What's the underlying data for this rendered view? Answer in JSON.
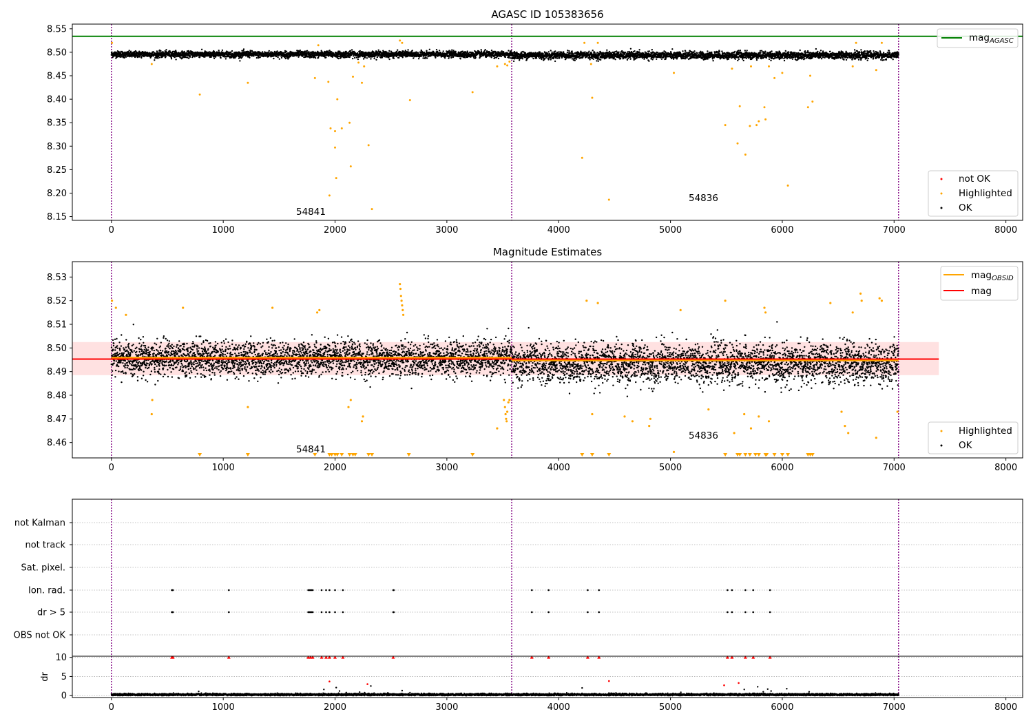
{
  "colors": {
    "ok": "#000000",
    "highlighted": "#ffa500",
    "not_ok": "#ff0000",
    "agasc_line": "#008000",
    "obsid_line": "#ffa500",
    "mag_line": "#ff0000",
    "mag_band": "#ffc8c8",
    "obs_boundary": "#800080",
    "grid": "#b0b0b0"
  },
  "chart_data": [
    {
      "panel": "top",
      "type": "scatter",
      "title": "AGASC ID 105383656",
      "xlabel": "",
      "ylabel": "",
      "xlim": [
        -350,
        8150
      ],
      "ylim": [
        8.142,
        8.56
      ],
      "x_ticks": [
        0,
        1000,
        2000,
        3000,
        4000,
        5000,
        6000,
        7000,
        8000
      ],
      "y_ticks": [
        8.15,
        8.2,
        8.25,
        8.3,
        8.35,
        8.4,
        8.45,
        8.5,
        8.55
      ],
      "y_tick_labels": [
        "8.15",
        "8.20",
        "8.25",
        "8.30",
        "8.35",
        "8.40",
        "8.45",
        "8.50",
        "8.55"
      ],
      "grid": false,
      "lines": [
        {
          "name": "mag_AGASC",
          "legend_main": "mag",
          "legend_sub": "AGASC",
          "y": 8.534,
          "x_range": [
            -350,
            8150
          ]
        }
      ],
      "obs_boundaries": [
        0,
        3580,
        7040
      ],
      "obs_labels": [
        {
          "text": "54841",
          "x": 1800,
          "y": 8.145
        },
        {
          "text": "54836",
          "x": 5300,
          "y": 8.175
        }
      ],
      "legend_lines": "upper right",
      "legend_markers": {
        "placement": "lower right",
        "entries": [
          "not OK",
          "Highlighted",
          "OK"
        ]
      },
      "series": [
        {
          "name": "OK",
          "color": "#000000",
          "description": "~7000 dense samples",
          "segments": [
            {
              "x_start": 0,
              "x_end": 3580,
              "y_mean": 8.4955,
              "y_spread": 0.006
            },
            {
              "x_start": 3580,
              "x_end": 7040,
              "y_mean": 8.4935,
              "y_spread": 0.007
            }
          ]
        },
        {
          "name": "Highlighted",
          "color": "#ffa500",
          "points": [
            [
              5,
              8.52
            ],
            [
              360,
              8.475
            ],
            [
              790,
              8.41
            ],
            [
              1220,
              8.435
            ],
            [
              1820,
              8.445
            ],
            [
              1850,
              8.515
            ],
            [
              1940,
              8.437
            ],
            [
              1950,
              8.195
            ],
            [
              1960,
              8.338
            ],
            [
              2000,
              8.297
            ],
            [
              2000,
              8.332
            ],
            [
              2010,
              8.232
            ],
            [
              2020,
              8.4
            ],
            [
              2060,
              8.338
            ],
            [
              2130,
              8.35
            ],
            [
              2140,
              8.257
            ],
            [
              2160,
              8.448
            ],
            [
              2210,
              8.478
            ],
            [
              2240,
              8.435
            ],
            [
              2260,
              8.47
            ],
            [
              2300,
              8.302
            ],
            [
              2330,
              8.166
            ],
            [
              2580,
              8.525
            ],
            [
              2600,
              8.52
            ],
            [
              2670,
              8.398
            ],
            [
              3230,
              8.415
            ],
            [
              3450,
              8.47
            ],
            [
              3520,
              8.475
            ],
            [
              3540,
              8.472
            ],
            [
              3560,
              8.48
            ],
            [
              4210,
              8.275
            ],
            [
              4230,
              8.52
            ],
            [
              4290,
              8.475
            ],
            [
              4300,
              8.403
            ],
            [
              4350,
              8.52
            ],
            [
              4450,
              8.186
            ],
            [
              5030,
              8.456
            ],
            [
              5490,
              8.345
            ],
            [
              5550,
              8.465
            ],
            [
              5600,
              8.306
            ],
            [
              5620,
              8.385
            ],
            [
              5670,
              8.282
            ],
            [
              5710,
              8.343
            ],
            [
              5720,
              8.47
            ],
            [
              5770,
              8.345
            ],
            [
              5790,
              8.353
            ],
            [
              5840,
              8.383
            ],
            [
              5850,
              8.357
            ],
            [
              5880,
              8.47
            ],
            [
              5930,
              8.445
            ],
            [
              6000,
              8.456
            ],
            [
              6050,
              8.216
            ],
            [
              6230,
              8.383
            ],
            [
              6250,
              8.45
            ],
            [
              6270,
              8.395
            ],
            [
              6630,
              8.47
            ],
            [
              6660,
              8.52
            ],
            [
              6840,
              8.462
            ],
            [
              6890,
              8.52
            ]
          ]
        },
        {
          "name": "not OK",
          "color": "#ff0000",
          "points": []
        }
      ]
    },
    {
      "panel": "middle",
      "type": "scatter",
      "title": "Magnitude Estimates",
      "xlabel": "",
      "ylabel": "",
      "xlim": [
        -350,
        8150
      ],
      "ylim": [
        8.4535,
        8.5365
      ],
      "x_ticks": [
        0,
        1000,
        2000,
        3000,
        4000,
        5000,
        6000,
        7000,
        8000
      ],
      "y_ticks": [
        8.46,
        8.47,
        8.48,
        8.49,
        8.5,
        8.51,
        8.52,
        8.53
      ],
      "y_tick_labels": [
        "8.46",
        "8.47",
        "8.48",
        "8.49",
        "8.50",
        "8.51",
        "8.52",
        "8.53"
      ],
      "grid": false,
      "band": {
        "x_range": [
          -350,
          7400
        ],
        "y_range": [
          8.4885,
          8.5025
        ]
      },
      "lines": [
        {
          "name": "mag_OBSID",
          "legend_main": "mag",
          "legend_sub": "OBSID",
          "segments": [
            {
              "x_range": [
                0,
                3580
              ],
              "y": 8.4959
            },
            {
              "x_range": [
                3580,
                7040
              ],
              "y": 8.4947
            }
          ]
        },
        {
          "name": "mag",
          "legend_main": "mag",
          "legend_sub": "",
          "y": 8.4953,
          "x_range": [
            -350,
            7400
          ]
        }
      ],
      "obs_boundaries": [
        0,
        3580,
        7040
      ],
      "obs_labels": [
        {
          "text": "54841",
          "x": 1800,
          "y": 8.4555
        },
        {
          "text": "54836",
          "x": 5300,
          "y": 8.4615
        }
      ],
      "legend_lines": "upper right",
      "legend_markers": {
        "placement": "lower right",
        "entries": [
          "Highlighted",
          "OK"
        ]
      },
      "series": [
        {
          "name": "OK",
          "color": "#000000",
          "description": "dense samples",
          "segments": [
            {
              "x_start": 0,
              "x_end": 3580,
              "y_mean": 8.4955,
              "y_spread": 0.0065
            },
            {
              "x_start": 3580,
              "x_end": 7040,
              "y_mean": 8.4935,
              "y_spread": 0.0075
            }
          ]
        },
        {
          "name": "Highlighted",
          "color": "#ffa500",
          "points": [
            [
              5,
              8.52
            ],
            [
              40,
              8.517
            ],
            [
              130,
              8.514
            ],
            [
              360,
              8.472
            ],
            [
              365,
              8.478
            ],
            [
              640,
              8.517
            ],
            [
              1220,
              8.475
            ],
            [
              1440,
              8.517
            ],
            [
              1840,
              8.515
            ],
            [
              1860,
              8.516
            ],
            [
              2120,
              8.475
            ],
            [
              2140,
              8.478
            ],
            [
              2240,
              8.469
            ],
            [
              2250,
              8.471
            ],
            [
              2580,
              8.527
            ],
            [
              2585,
              8.525
            ],
            [
              2590,
              8.522
            ],
            [
              2595,
              8.52
            ],
            [
              2600,
              8.518
            ],
            [
              2605,
              8.516
            ],
            [
              2610,
              8.514
            ],
            [
              3450,
              8.466
            ],
            [
              3510,
              8.478
            ],
            [
              3520,
              8.475
            ],
            [
              3525,
              8.472
            ],
            [
              3530,
              8.47
            ],
            [
              3535,
              8.469
            ],
            [
              3540,
              8.473
            ],
            [
              3550,
              8.477
            ],
            [
              3560,
              8.478
            ],
            [
              4250,
              8.52
            ],
            [
              4300,
              8.472
            ],
            [
              4350,
              8.519
            ],
            [
              4590,
              8.471
            ],
            [
              4660,
              8.469
            ],
            [
              4810,
              8.467
            ],
            [
              4820,
              8.47
            ],
            [
              5030,
              8.456
            ],
            [
              5090,
              8.516
            ],
            [
              5340,
              8.474
            ],
            [
              5490,
              8.52
            ],
            [
              5570,
              8.464
            ],
            [
              5660,
              8.472
            ],
            [
              5720,
              8.466
            ],
            [
              5790,
              8.471
            ],
            [
              5840,
              8.517
            ],
            [
              5850,
              8.515
            ],
            [
              5880,
              8.469
            ],
            [
              6430,
              8.519
            ],
            [
              6530,
              8.473
            ],
            [
              6560,
              8.467
            ],
            [
              6590,
              8.464
            ],
            [
              6630,
              8.515
            ],
            [
              6700,
              8.523
            ],
            [
              6710,
              8.52
            ],
            [
              6840,
              8.462
            ],
            [
              6870,
              8.521
            ],
            [
              6890,
              8.52
            ],
            [
              7030,
              8.473
            ]
          ]
        },
        {
          "name": "Highlighted (below range)",
          "color": "#ffa500",
          "marker": "triangle-down",
          "x": [
            790,
            1220,
            1820,
            1950,
            1970,
            2000,
            2020,
            2060,
            2130,
            2160,
            2180,
            2300,
            2330,
            2660,
            3230,
            4210,
            4300,
            4450,
            5490,
            5600,
            5620,
            5670,
            5710,
            5760,
            5790,
            5850,
            5860,
            5930,
            6000,
            6050,
            6230,
            6250,
            6270
          ]
        }
      ]
    },
    {
      "panel": "bottom",
      "type": "scatter",
      "title": "",
      "xlabel": "",
      "ylabel": "",
      "xlim": [
        -350,
        8150
      ],
      "x_ticks": [
        0,
        1000,
        2000,
        3000,
        4000,
        5000,
        6000,
        7000,
        8000
      ],
      "grid": "horizontal dotted",
      "obs_boundaries": [
        0,
        3580,
        7040
      ],
      "flag_rows": [
        {
          "label": "not Kalman",
          "x": []
        },
        {
          "label": "not track",
          "x": []
        },
        {
          "label": "Sat. pixel.",
          "x": []
        },
        {
          "label": "Ion. rad.",
          "x": [
            540,
            545,
            550,
            1050,
            1760,
            1770,
            1780,
            1790,
            1800,
            1880,
            1920,
            1950,
            2000,
            2070,
            2520,
            2525,
            3760,
            3910,
            4260,
            4360,
            5510,
            5550,
            5670,
            5740,
            5890
          ]
        },
        {
          "label": "dr > 5",
          "x": [
            540,
            545,
            550,
            1050,
            1760,
            1770,
            1780,
            1790,
            1800,
            1880,
            1920,
            1950,
            2000,
            2070,
            2520,
            2525,
            3760,
            3910,
            4260,
            4360,
            5510,
            5550,
            5670,
            5740,
            5890
          ]
        },
        {
          "label": "OBS not OK",
          "x": []
        }
      ]
    },
    {
      "panel": "dr",
      "type": "scatter",
      "title": "",
      "xlabel": "",
      "ylabel": "dr",
      "xlim": [
        -350,
        8150
      ],
      "ylim": [
        -0.5,
        10.3
      ],
      "y_ticks": [
        0,
        5,
        10
      ],
      "y_tick_labels": [
        "0",
        "5",
        "10"
      ],
      "x_ticks": [
        0,
        1000,
        2000,
        3000,
        4000,
        5000,
        6000,
        7000,
        8000
      ],
      "x_tick_labels": [
        "0",
        "1000",
        "2000",
        "3000",
        "4000",
        "5000",
        "6000",
        "7000",
        "8000"
      ],
      "grid": "horizontal dotted",
      "obs_boundaries": [
        0,
        3580,
        7040
      ],
      "series": [
        {
          "name": "OK",
          "color": "#000000",
          "description": "dr near 0-0.6 for all samples",
          "x_range": [
            0,
            7040
          ],
          "y_mean": 0.25,
          "y_spread": 0.25
        },
        {
          "name": "dr clipped at 10",
          "color": "#ff0000",
          "marker": "triangle-up",
          "x": [
            540,
            550,
            1050,
            1760,
            1780,
            1800,
            1880,
            1920,
            1950,
            2000,
            2070,
            2520,
            3760,
            3910,
            4260,
            4360,
            5510,
            5550,
            5670,
            5740,
            5890
          ],
          "y": 10
        },
        {
          "name": "dr outliers",
          "color": "#ff0000",
          "points": [
            [
              1950,
              3.7
            ],
            [
              2290,
              3.0
            ],
            [
              4450,
              3.8
            ],
            [
              5480,
              2.7
            ],
            [
              5610,
              3.3
            ]
          ]
        },
        {
          "name": "dr moderate",
          "color": "#000000",
          "points": [
            [
              780,
              1.1
            ],
            [
              1900,
              1.6
            ],
            [
              2010,
              2.1
            ],
            [
              2040,
              1.2
            ],
            [
              2100,
              0.8
            ],
            [
              2220,
              0.9
            ],
            [
              2320,
              2.5
            ],
            [
              2600,
              1.3
            ],
            [
              4210,
              2.0
            ],
            [
              5660,
              1.6
            ],
            [
              5780,
              2.3
            ],
            [
              5830,
              1.0
            ],
            [
              5870,
              1.7
            ],
            [
              5900,
              1.2
            ],
            [
              6040,
              1.8
            ],
            [
              6240,
              1.0
            ]
          ]
        }
      ]
    }
  ]
}
